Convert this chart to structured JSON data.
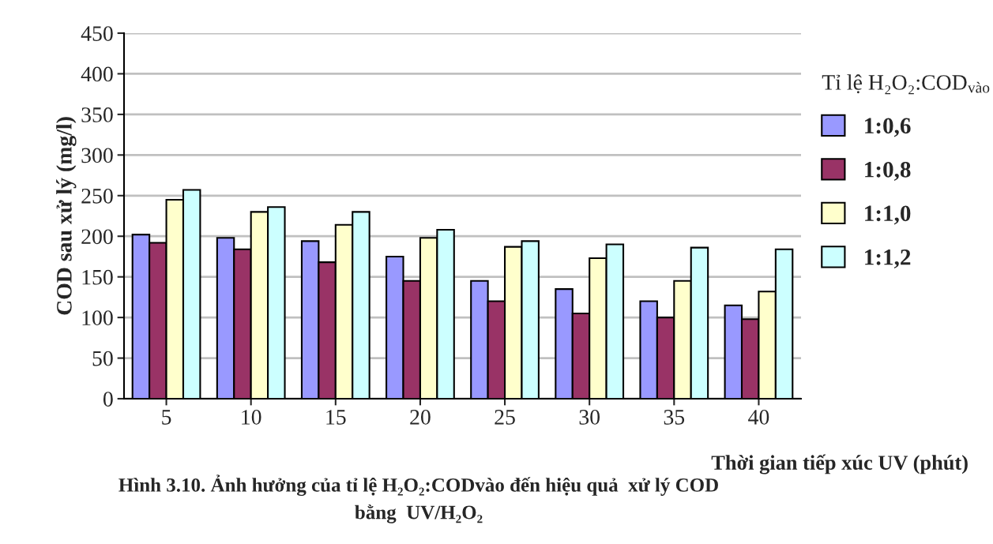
{
  "chart_data": {
    "type": "bar",
    "title": "Hình 3.10. Ảnh hưởng của tỉ lệ H₂O₂:CODvào đến hiệu quả  xử lý COD\nbằng  UV/H₂O₂",
    "xlabel": "Thời gian tiếp xúc UV (phút)",
    "ylabel": "COD sau xử lý (mg/l)",
    "legend_title": "Tỉ lệ H₂O₂:COD$_{vào}$",
    "categories": [
      "5",
      "10",
      "15",
      "20",
      "25",
      "30",
      "35",
      "40"
    ],
    "series": [
      {
        "name": "1:0,6",
        "color": "#9999ff",
        "values": [
          202,
          198,
          194,
          175,
          145,
          135,
          120,
          115
        ]
      },
      {
        "name": "1:0,8",
        "color": "#993366",
        "values": [
          192,
          184,
          168,
          145,
          120,
          105,
          100,
          98
        ]
      },
      {
        "name": "1:1,0",
        "color": "#ffffcc",
        "values": [
          245,
          230,
          214,
          198,
          187,
          173,
          145,
          132
        ]
      },
      {
        "name": "1:1,2",
        "color": "#ccffff",
        "values": [
          257,
          236,
          230,
          208,
          194,
          190,
          186,
          184
        ]
      }
    ],
    "ylim": [
      0,
      450
    ],
    "yticks": [
      0,
      50,
      100,
      150,
      200,
      250,
      300,
      350,
      400,
      450
    ],
    "grid": "y",
    "legend": "right"
  }
}
